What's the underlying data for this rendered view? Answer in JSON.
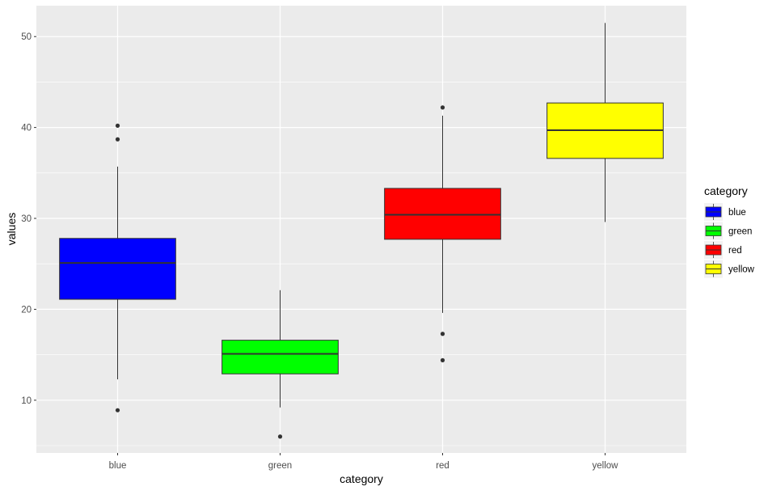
{
  "chart_data": {
    "type": "box",
    "xlabel": "category",
    "ylabel": "values",
    "categories": [
      "blue",
      "green",
      "red",
      "yellow"
    ],
    "ylim": [
      4.2,
      53.4
    ],
    "y_ticks": [
      10,
      20,
      30,
      40,
      50
    ],
    "grid": true,
    "legend": {
      "title": "category",
      "position": "right",
      "items": [
        "blue",
        "green",
        "red",
        "yellow"
      ]
    },
    "colors": {
      "blue": "#0000ff",
      "green": "#00ff00",
      "red": "#ff0000",
      "yellow": "#ffff00",
      "panel_background": "#ebebeb",
      "grid": "#ffffff",
      "outline": "#333333",
      "median": "#333333"
    },
    "boxes": [
      {
        "category": "blue",
        "lower_whisker": 12.3,
        "q1": 21.1,
        "median": 25.1,
        "q3": 27.8,
        "upper_whisker": 35.7,
        "outliers": [
          40.2,
          38.7,
          8.9
        ]
      },
      {
        "category": "green",
        "lower_whisker": 9.2,
        "q1": 12.9,
        "median": 15.1,
        "q3": 16.6,
        "upper_whisker": 22.1,
        "outliers": [
          6.0
        ]
      },
      {
        "category": "red",
        "lower_whisker": 19.6,
        "q1": 27.7,
        "median": 30.4,
        "q3": 33.3,
        "upper_whisker": 41.3,
        "outliers": [
          42.2,
          17.3,
          14.4
        ]
      },
      {
        "category": "yellow",
        "lower_whisker": 29.6,
        "q1": 36.6,
        "median": 39.7,
        "q3": 42.7,
        "upper_whisker": 51.5,
        "outliers": []
      }
    ]
  }
}
